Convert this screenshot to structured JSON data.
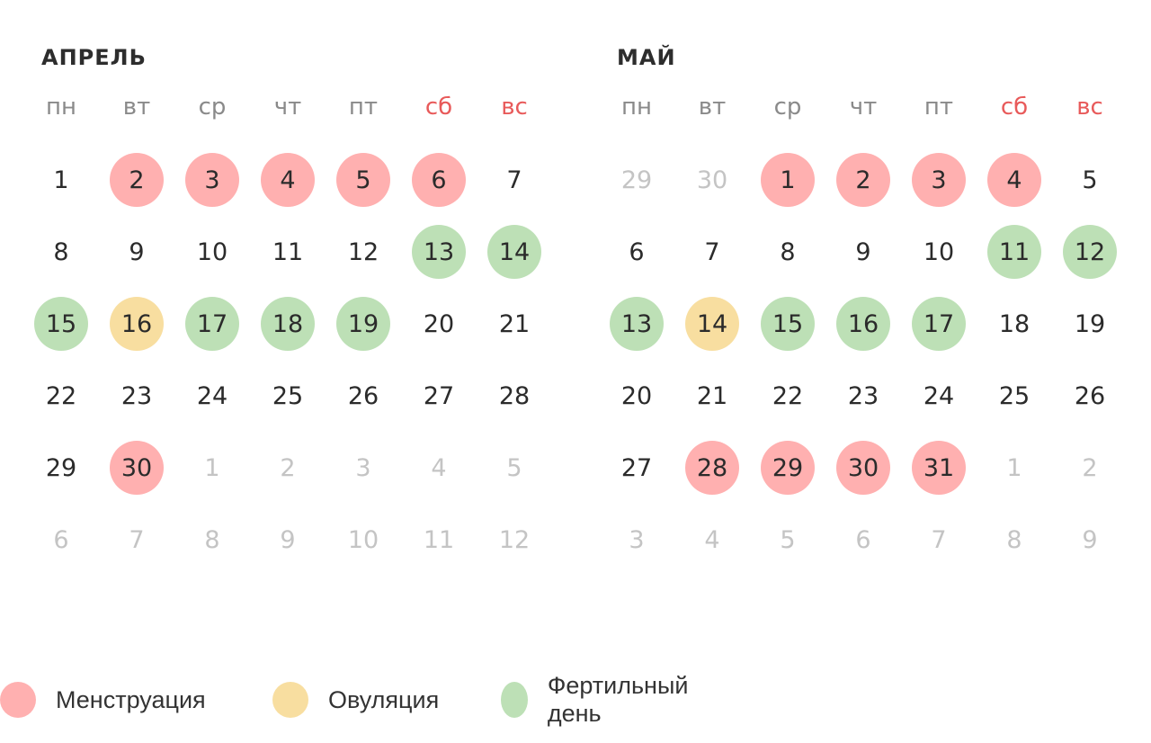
{
  "colors": {
    "menstruation": "#ffb0b0",
    "ovulation": "#f8dea0",
    "fertile": "#bde0b6",
    "weekend": "#e85a5a",
    "weekday_header": "#8a8a8a",
    "other_month": "#c4c4c4",
    "text": "#2b2b2b"
  },
  "weekdays": [
    "пн",
    "вт",
    "ср",
    "чт",
    "пт",
    "сб",
    "вс"
  ],
  "months": [
    {
      "title": "АПРЕЛЬ",
      "days": [
        {
          "d": "1",
          "t": ""
        },
        {
          "d": "2",
          "t": "m"
        },
        {
          "d": "3",
          "t": "m"
        },
        {
          "d": "4",
          "t": "m"
        },
        {
          "d": "5",
          "t": "m"
        },
        {
          "d": "6",
          "t": "m"
        },
        {
          "d": "7",
          "t": ""
        },
        {
          "d": "8",
          "t": ""
        },
        {
          "d": "9",
          "t": ""
        },
        {
          "d": "10",
          "t": ""
        },
        {
          "d": "11",
          "t": ""
        },
        {
          "d": "12",
          "t": ""
        },
        {
          "d": "13",
          "t": "f"
        },
        {
          "d": "14",
          "t": "f"
        },
        {
          "d": "15",
          "t": "f"
        },
        {
          "d": "16",
          "t": "o"
        },
        {
          "d": "17",
          "t": "f"
        },
        {
          "d": "18",
          "t": "f"
        },
        {
          "d": "19",
          "t": "f"
        },
        {
          "d": "20",
          "t": ""
        },
        {
          "d": "21",
          "t": ""
        },
        {
          "d": "22",
          "t": ""
        },
        {
          "d": "23",
          "t": ""
        },
        {
          "d": "24",
          "t": ""
        },
        {
          "d": "25",
          "t": ""
        },
        {
          "d": "26",
          "t": ""
        },
        {
          "d": "27",
          "t": ""
        },
        {
          "d": "28",
          "t": ""
        },
        {
          "d": "29",
          "t": ""
        },
        {
          "d": "30",
          "t": "m"
        },
        {
          "d": "1",
          "t": "other"
        },
        {
          "d": "2",
          "t": "other"
        },
        {
          "d": "3",
          "t": "other"
        },
        {
          "d": "4",
          "t": "other"
        },
        {
          "d": "5",
          "t": "other"
        },
        {
          "d": "6",
          "t": "other"
        },
        {
          "d": "7",
          "t": "other"
        },
        {
          "d": "8",
          "t": "other"
        },
        {
          "d": "9",
          "t": "other"
        },
        {
          "d": "10",
          "t": "other"
        },
        {
          "d": "11",
          "t": "other"
        },
        {
          "d": "12",
          "t": "other"
        }
      ]
    },
    {
      "title": "МАЙ",
      "days": [
        {
          "d": "29",
          "t": "other"
        },
        {
          "d": "30",
          "t": "other"
        },
        {
          "d": "1",
          "t": "m"
        },
        {
          "d": "2",
          "t": "m"
        },
        {
          "d": "3",
          "t": "m"
        },
        {
          "d": "4",
          "t": "m"
        },
        {
          "d": "5",
          "t": ""
        },
        {
          "d": "6",
          "t": ""
        },
        {
          "d": "7",
          "t": ""
        },
        {
          "d": "8",
          "t": ""
        },
        {
          "d": "9",
          "t": ""
        },
        {
          "d": "10",
          "t": ""
        },
        {
          "d": "11",
          "t": "f"
        },
        {
          "d": "12",
          "t": "f"
        },
        {
          "d": "13",
          "t": "f"
        },
        {
          "d": "14",
          "t": "o"
        },
        {
          "d": "15",
          "t": "f"
        },
        {
          "d": "16",
          "t": "f"
        },
        {
          "d": "17",
          "t": "f"
        },
        {
          "d": "18",
          "t": ""
        },
        {
          "d": "19",
          "t": ""
        },
        {
          "d": "20",
          "t": ""
        },
        {
          "d": "21",
          "t": ""
        },
        {
          "d": "22",
          "t": ""
        },
        {
          "d": "23",
          "t": ""
        },
        {
          "d": "24",
          "t": ""
        },
        {
          "d": "25",
          "t": ""
        },
        {
          "d": "26",
          "t": ""
        },
        {
          "d": "27",
          "t": ""
        },
        {
          "d": "28",
          "t": "m"
        },
        {
          "d": "29",
          "t": "m"
        },
        {
          "d": "30",
          "t": "m"
        },
        {
          "d": "31",
          "t": "m"
        },
        {
          "d": "1",
          "t": "other"
        },
        {
          "d": "2",
          "t": "other"
        },
        {
          "d": "3",
          "t": "other"
        },
        {
          "d": "4",
          "t": "other"
        },
        {
          "d": "5",
          "t": "other"
        },
        {
          "d": "6",
          "t": "other"
        },
        {
          "d": "7",
          "t": "other"
        },
        {
          "d": "8",
          "t": "other"
        },
        {
          "d": "9",
          "t": "other"
        }
      ]
    }
  ],
  "legend": [
    {
      "label": "Менструация",
      "type": "m"
    },
    {
      "label": "Овуляция",
      "type": "o"
    },
    {
      "label": "Фертильный день",
      "type": "f"
    }
  ]
}
